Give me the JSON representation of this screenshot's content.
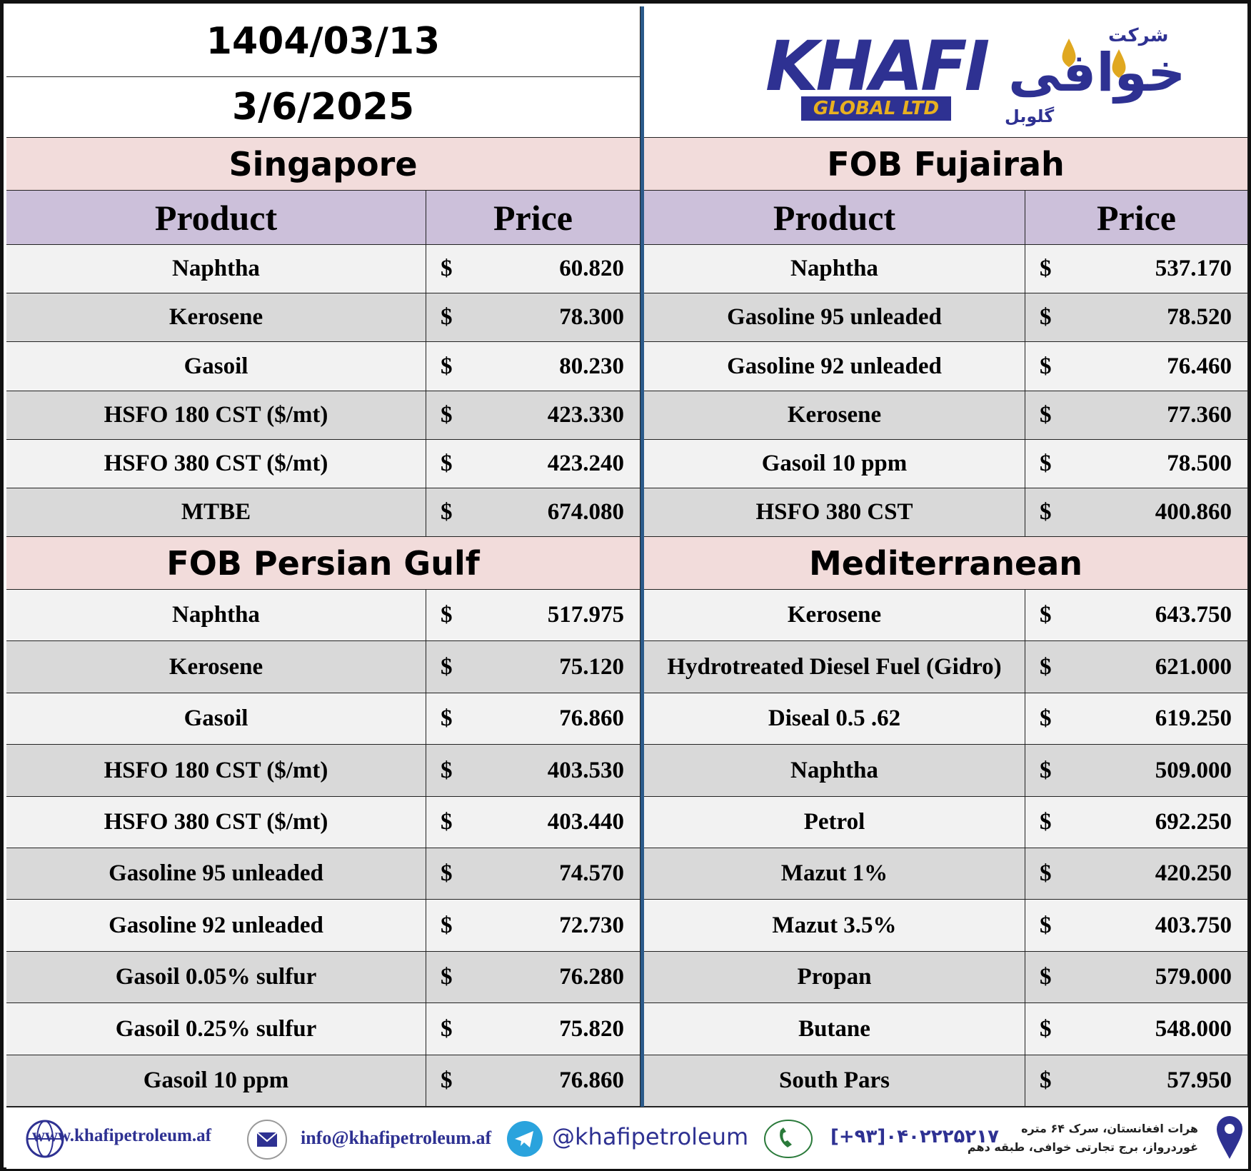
{
  "header": {
    "date_persian": "1404/03/13",
    "date": "3/6/2025"
  },
  "logo": {
    "brand": "KHAFI",
    "subtitle": "GLOBAL LTD",
    "persian_top": "شرکت",
    "persian_main": "خوافی",
    "persian_bottom": "گلوبل"
  },
  "sections": [
    {
      "title": "Singapore",
      "columns": [
        "Product",
        "Price"
      ],
      "rows": [
        {
          "product": "Naphtha",
          "currency": "$",
          "price": "60.820"
        },
        {
          "product": "Kerosene",
          "currency": "$",
          "price": "78.300"
        },
        {
          "product": "Gasoil",
          "currency": "$",
          "price": "80.230"
        },
        {
          "product": "HSFO 180 CST ($/mt)",
          "currency": "$",
          "price": "423.330"
        },
        {
          "product": "HSFO 380 CST ($/mt)",
          "currency": "$",
          "price": "423.240"
        },
        {
          "product": "MTBE",
          "currency": "$",
          "price": "674.080"
        }
      ]
    },
    {
      "title": "FOB Fujairah",
      "columns": [
        "Product",
        "Price"
      ],
      "rows": [
        {
          "product": "Naphtha",
          "currency": "$",
          "price": "537.170"
        },
        {
          "product": "Gasoline 95 unleaded",
          "currency": "$",
          "price": "78.520"
        },
        {
          "product": "Gasoline 92 unleaded",
          "currency": "$",
          "price": "76.460"
        },
        {
          "product": "Kerosene",
          "currency": "$",
          "price": "77.360"
        },
        {
          "product": "Gasoil 10 ppm",
          "currency": "$",
          "price": "78.500"
        },
        {
          "product": "HSFO 380 CST",
          "currency": "$",
          "price": "400.860"
        }
      ]
    },
    {
      "title": "FOB Persian Gulf",
      "rows": [
        {
          "product": "Naphtha",
          "currency": "$",
          "price": "517.975"
        },
        {
          "product": "Kerosene",
          "currency": "$",
          "price": "75.120"
        },
        {
          "product": "Gasoil",
          "currency": "$",
          "price": "76.860"
        },
        {
          "product": "HSFO 180 CST ($/mt)",
          "currency": "$",
          "price": "403.530"
        },
        {
          "product": "HSFO 380 CST ($/mt)",
          "currency": "$",
          "price": "403.440"
        },
        {
          "product": "Gasoline 95 unleaded",
          "currency": "$",
          "price": "74.570"
        },
        {
          "product": "Gasoline 92 unleaded",
          "currency": "$",
          "price": "72.730"
        },
        {
          "product": "Gasoil 0.05% sulfur",
          "currency": "$",
          "price": "76.280"
        },
        {
          "product": "Gasoil 0.25% sulfur",
          "currency": "$",
          "price": "75.820"
        },
        {
          "product": "Gasoil 10 ppm",
          "currency": "$",
          "price": "76.860"
        }
      ]
    },
    {
      "title": "Mediterranean",
      "rows": [
        {
          "product": "Kerosene",
          "currency": "$",
          "price": "643.750"
        },
        {
          "product": "Hydrotreated Diesel Fuel (Gidro)",
          "currency": "$",
          "price": "621.000"
        },
        {
          "product": "Diseal 0.5 .62",
          "currency": "$",
          "price": "619.250"
        },
        {
          "product": "Naphtha",
          "currency": "$",
          "price": "509.000"
        },
        {
          "product": "Petrol",
          "currency": "$",
          "price": "692.250"
        },
        {
          "product": "Mazut 1%",
          "currency": "$",
          "price": "420.250"
        },
        {
          "product": "Mazut 3.5%",
          "currency": "$",
          "price": "403.750"
        },
        {
          "product": "Propan",
          "currency": "$",
          "price": "579.000"
        },
        {
          "product": "Butane",
          "currency": "$",
          "price": "548.000"
        },
        {
          "product": "South Pars",
          "currency": "$",
          "price": "57.950"
        }
      ]
    }
  ],
  "footer": {
    "website": "www.khafipetroleum.af",
    "email": "info@khafipetroleum.af",
    "telegram": "@khafipetroleum",
    "phone": "[+۹۳]۰۴۰۲۲۲۵۲۱۷",
    "address_line1": "هرات افغانستان، سرک ۶۴ متره",
    "address_line2": "غوردرواز، برج تجارتی خوافی، طبقه دهم"
  }
}
